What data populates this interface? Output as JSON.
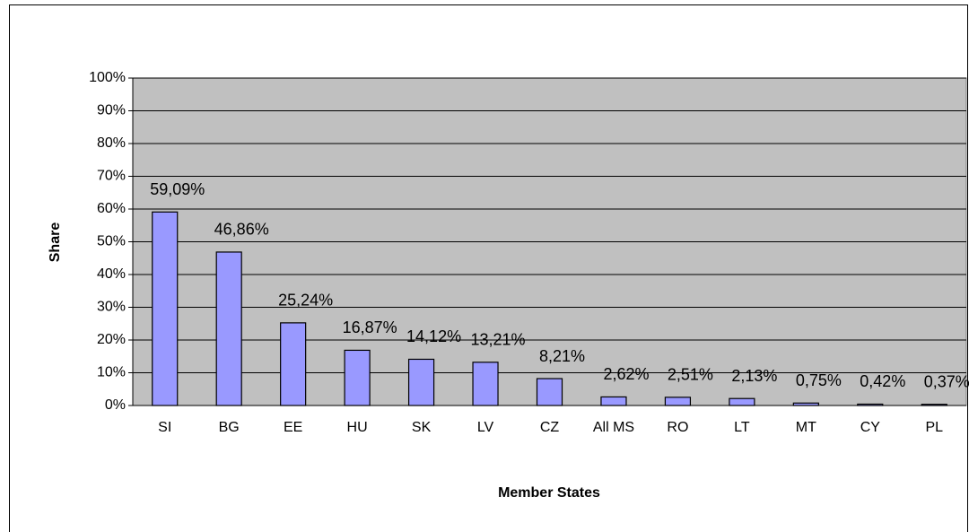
{
  "chart_data": {
    "type": "bar",
    "x_label": "Member States",
    "y_label": "Share",
    "categories": [
      "SI",
      "BG",
      "EE",
      "HU",
      "SK",
      "LV",
      "CZ",
      "All MS",
      "RO",
      "LT",
      "MT",
      "CY",
      "PL"
    ],
    "values": [
      59.09,
      46.86,
      25.24,
      16.87,
      14.12,
      13.21,
      8.21,
      2.62,
      2.51,
      2.13,
      0.75,
      0.42,
      0.37
    ],
    "value_labels": [
      "59,09%",
      "46,86%",
      "25,24%",
      "16,87%",
      "14,12%",
      "13,21%",
      "8,21%",
      "2,62%",
      "2,51%",
      "2,13%",
      "0,75%",
      "0,42%",
      "0,37%"
    ],
    "color": "#9999ff",
    "ylim": [
      0,
      100
    ],
    "yticks": [
      {
        "value": 0,
        "label": "0%"
      },
      {
        "value": 10,
        "label": "10%"
      },
      {
        "value": 20,
        "label": "20%"
      },
      {
        "value": 30,
        "label": "30%"
      },
      {
        "value": 40,
        "label": "40%"
      },
      {
        "value": 50,
        "label": "50%"
      },
      {
        "value": 60,
        "label": "60%"
      },
      {
        "value": 70,
        "label": "70%"
      },
      {
        "value": 80,
        "label": "80%"
      },
      {
        "value": 90,
        "label": "90%"
      },
      {
        "value": 100,
        "label": "100%"
      }
    ],
    "grid": true
  }
}
